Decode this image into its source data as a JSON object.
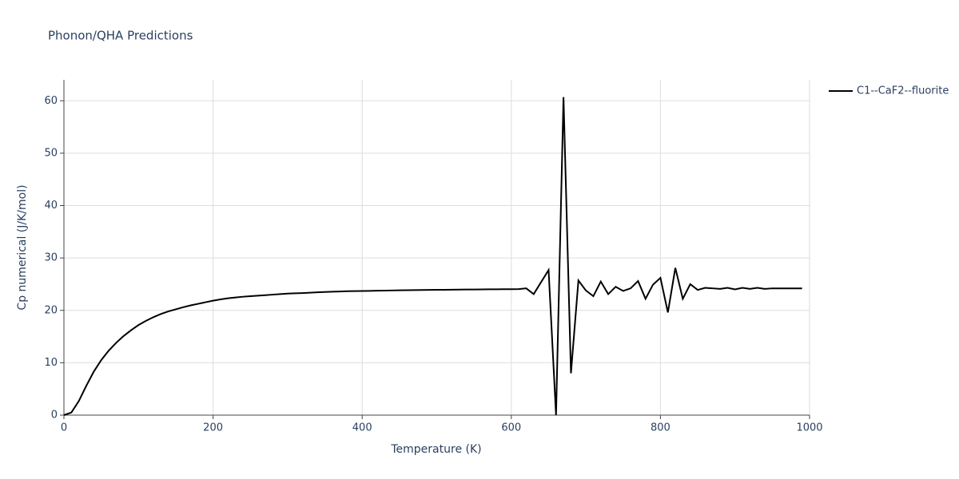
{
  "chart_data": {
    "type": "line",
    "title": "Phonon/QHA Predictions",
    "x_label": "Temperature (K)",
    "y_label": "Cp numerical (J/K/mol)",
    "xlim": [
      0,
      1000
    ],
    "xticks": [
      0,
      200,
      400,
      600,
      800,
      1000
    ],
    "ylim": [
      0,
      64
    ],
    "yticks": [
      0,
      10,
      20,
      30,
      40,
      50,
      60
    ],
    "grid": true,
    "legend": "right",
    "x": [
      0,
      10,
      20,
      30,
      40,
      50,
      60,
      70,
      80,
      90,
      100,
      110,
      120,
      130,
      140,
      150,
      160,
      170,
      180,
      190,
      200,
      210,
      220,
      230,
      240,
      250,
      260,
      270,
      280,
      290,
      300,
      310,
      320,
      330,
      340,
      350,
      360,
      370,
      380,
      390,
      400,
      410,
      420,
      430,
      440,
      450,
      460,
      470,
      480,
      490,
      500,
      510,
      520,
      530,
      540,
      550,
      560,
      570,
      580,
      590,
      600,
      610,
      620,
      630,
      640,
      650,
      660,
      670,
      680,
      690,
      700,
      710,
      720,
      730,
      740,
      750,
      760,
      770,
      780,
      790,
      800,
      810,
      820,
      830,
      840,
      850,
      860,
      870,
      880,
      890,
      900,
      910,
      920,
      930,
      940,
      950,
      960,
      970,
      980,
      990
    ],
    "series": [
      {
        "name": "C1--CaF2--fluorite",
        "color": "#000000",
        "values": [
          0,
          0.5,
          2.7,
          5.6,
          8.3,
          10.5,
          12.3,
          13.8,
          15.1,
          16.2,
          17.2,
          18.0,
          18.7,
          19.3,
          19.8,
          20.2,
          20.6,
          20.95,
          21.25,
          21.55,
          21.85,
          22.1,
          22.3,
          22.45,
          22.6,
          22.7,
          22.8,
          22.9,
          23.0,
          23.1,
          23.2,
          23.25,
          23.3,
          23.38,
          23.45,
          23.5,
          23.56,
          23.6,
          23.65,
          23.68,
          23.7,
          23.72,
          23.75,
          23.77,
          23.8,
          23.82,
          23.84,
          23.86,
          23.88,
          23.9,
          23.92,
          23.93,
          23.95,
          23.96,
          23.98,
          23.99,
          24.0,
          24.01,
          24.02,
          24.03,
          24.04,
          24.05,
          24.2,
          23.1,
          25.4,
          27.7,
          0,
          60.7,
          8.0,
          25.7,
          23.8,
          22.7,
          25.5,
          23.1,
          24.5,
          23.7,
          24.2,
          25.6,
          22.2,
          24.9,
          26.2,
          19.6,
          28.1,
          22.2,
          25.0,
          23.9,
          24.3,
          24.2,
          24.1,
          24.3,
          24.0,
          24.3,
          24.1,
          24.3,
          24.1,
          24.2,
          24.2,
          24.2,
          24.2,
          24.2
        ]
      }
    ]
  }
}
